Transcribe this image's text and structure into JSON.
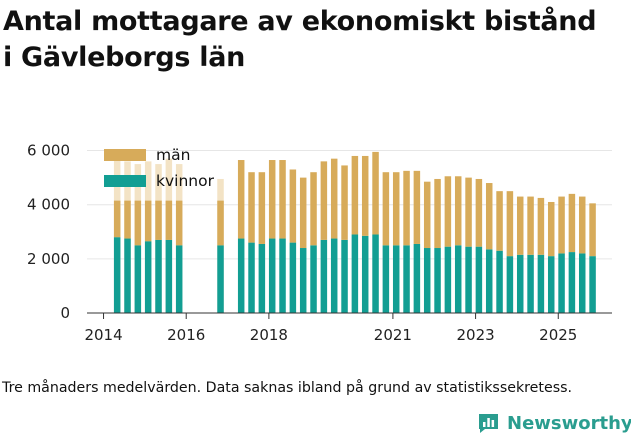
{
  "title_line1": "Antal mottagare av ekonomiskt bistånd",
  "title_line2": "i Gävleborgs län",
  "caption": "Tre månaders medelvärden. Data saknas ibland på grund av statistikssekretess.",
  "brand": "Newsworthy",
  "colors": {
    "men": "#d7ab5a",
    "women": "#129e93",
    "men_faded": "#f3e3c5",
    "axis": "#333333",
    "grid": "#e6e6e6",
    "brand": "#2a9d8f"
  },
  "chart_data": {
    "type": "bar",
    "stacked": true,
    "title": "Antal mottagare av ekonomiskt bistånd i Gävleborgs län",
    "xlabel": "",
    "ylabel": "",
    "ylim": [
      0,
      6500
    ],
    "y_ticks": [
      0,
      2000,
      4000,
      6000
    ],
    "y_tick_labels": [
      "0",
      "2 000",
      "4 000",
      "6 000"
    ],
    "x_range": [
      2013.6,
      2026.3
    ],
    "x_ticks": [
      2014,
      2016,
      2018,
      2021,
      2023,
      2025
    ],
    "x_tick_labels": [
      "2014",
      "2016",
      "2018",
      "2021",
      "2023",
      "2025"
    ],
    "legend": {
      "position": "top-left",
      "entries": [
        {
          "key": "men",
          "label": "män"
        },
        {
          "key": "women",
          "label": "kvinnor"
        }
      ]
    },
    "x": [
      2014.33,
      2014.58,
      2014.83,
      2015.08,
      2015.33,
      2015.58,
      2015.83,
      2016.83,
      2017.33,
      2017.58,
      2017.83,
      2018.08,
      2018.33,
      2018.58,
      2018.83,
      2019.08,
      2019.33,
      2019.58,
      2019.83,
      2020.08,
      2020.33,
      2020.58,
      2020.83,
      2021.08,
      2021.33,
      2021.58,
      2021.83,
      2022.08,
      2022.33,
      2022.58,
      2022.83,
      2023.08,
      2023.33,
      2023.58,
      2023.83,
      2024.08,
      2024.33,
      2024.58,
      2024.83,
      2025.08,
      2025.33,
      2025.58,
      2025.83
    ],
    "series": [
      {
        "name": "kvinnor",
        "key": "women",
        "values": [
          2800,
          2750,
          2500,
          2650,
          2700,
          2700,
          2500,
          2500,
          2750,
          2600,
          2550,
          2750,
          2750,
          2600,
          2400,
          2500,
          2700,
          2750,
          2700,
          2900,
          2850,
          2900,
          2500,
          2500,
          2500,
          2550,
          2400,
          2400,
          2450,
          2500,
          2450,
          2450,
          2350,
          2300,
          2100,
          2150,
          2150,
          2150,
          2100,
          2200,
          2250,
          2200,
          2100
        ]
      },
      {
        "name": "män",
        "key": "men",
        "values": [
          1350,
          1400,
          1650,
          1500,
          1450,
          1450,
          1650,
          1650,
          2900,
          2600,
          2650,
          2900,
          2900,
          2700,
          2600,
          2700,
          2900,
          2950,
          2750,
          2900,
          2950,
          3050,
          2700,
          2700,
          2750,
          2700,
          2450,
          2550,
          2600,
          2550,
          2550,
          2500,
          2450,
          2200,
          2400,
          2150,
          2150,
          2100,
          2000,
          2100,
          2150,
          2100,
          1950
        ]
      }
    ],
    "faded_extension_values": [
      5700,
      5600,
      5500,
      5600,
      5500,
      5700,
      5500,
      4950
    ]
  }
}
